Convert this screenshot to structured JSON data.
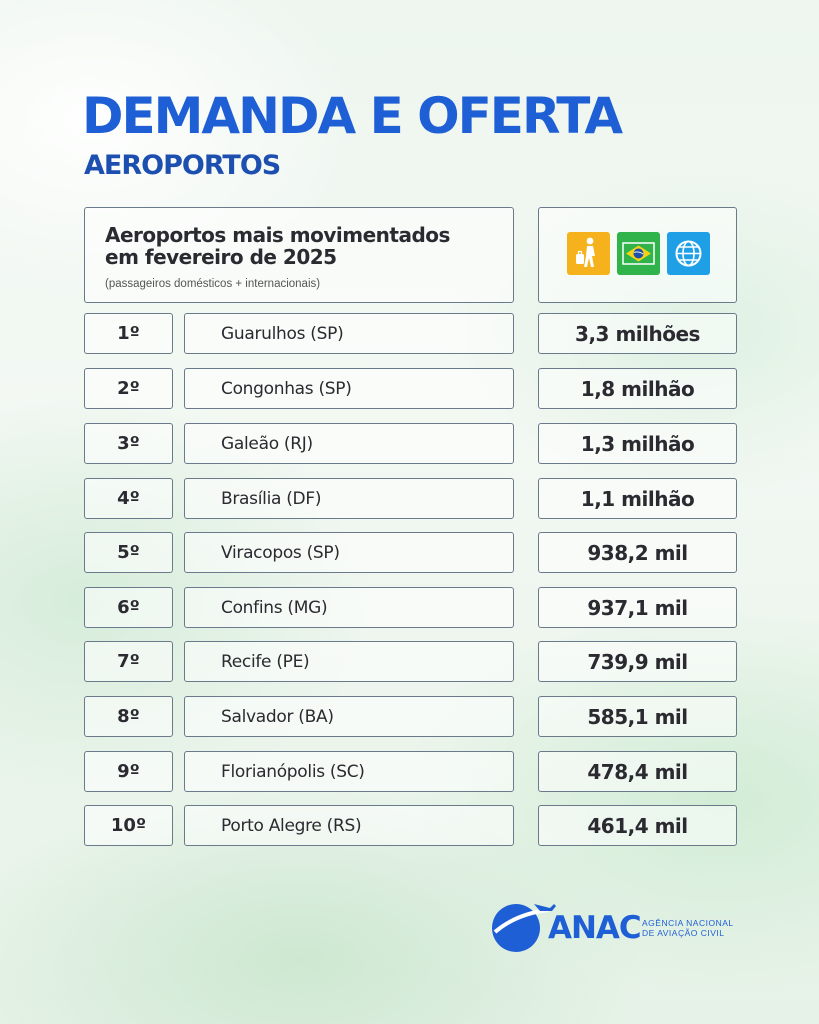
{
  "title": "DEMANDA E OFERTA",
  "subtitle": "AEROPORTOS",
  "table": {
    "header": {
      "title_line1": "Aeroportos mais movimentados",
      "title_line2": "em fevereiro de 2025",
      "note": "(passageiros domésticos + internacionais)"
    },
    "icons": [
      "traveler-icon",
      "brazil-flag-icon",
      "globe-icon"
    ],
    "colors": {
      "traveler": "#f5b21c",
      "brazil": "#2fb34a",
      "globe": "#1fa0e6",
      "accent": "#1f5fd6"
    },
    "rows": [
      {
        "rank": "1º",
        "airport": "Guarulhos (SP)",
        "passengers": "3,3 milhões"
      },
      {
        "rank": "2º",
        "airport": "Congonhas (SP)",
        "passengers": "1,8 milhão"
      },
      {
        "rank": "3º",
        "airport": "Galeão (RJ)",
        "passengers": "1,3 milhão"
      },
      {
        "rank": "4º",
        "airport": "Brasília (DF)",
        "passengers": "1,1 milhão"
      },
      {
        "rank": "5º",
        "airport": "Viracopos (SP)",
        "passengers": "938,2 mil"
      },
      {
        "rank": "6º",
        "airport": "Confins (MG)",
        "passengers": "937,1 mil"
      },
      {
        "rank": "7º",
        "airport": "Recife (PE)",
        "passengers": "739,9 mil"
      },
      {
        "rank": "8º",
        "airport": "Salvador (BA)",
        "passengers": "585,1 mil"
      },
      {
        "rank": "9º",
        "airport": "Florianópolis (SC)",
        "passengers": "478,4 mil"
      },
      {
        "rank": "10º",
        "airport": "Porto Alegre (RS)",
        "passengers": "461,4 mil"
      }
    ]
  },
  "logo": {
    "name": "ANAC",
    "sub_line1": "AGÊNCIA NACIONAL",
    "sub_line2": "DE AVIAÇÃO CIVIL"
  }
}
